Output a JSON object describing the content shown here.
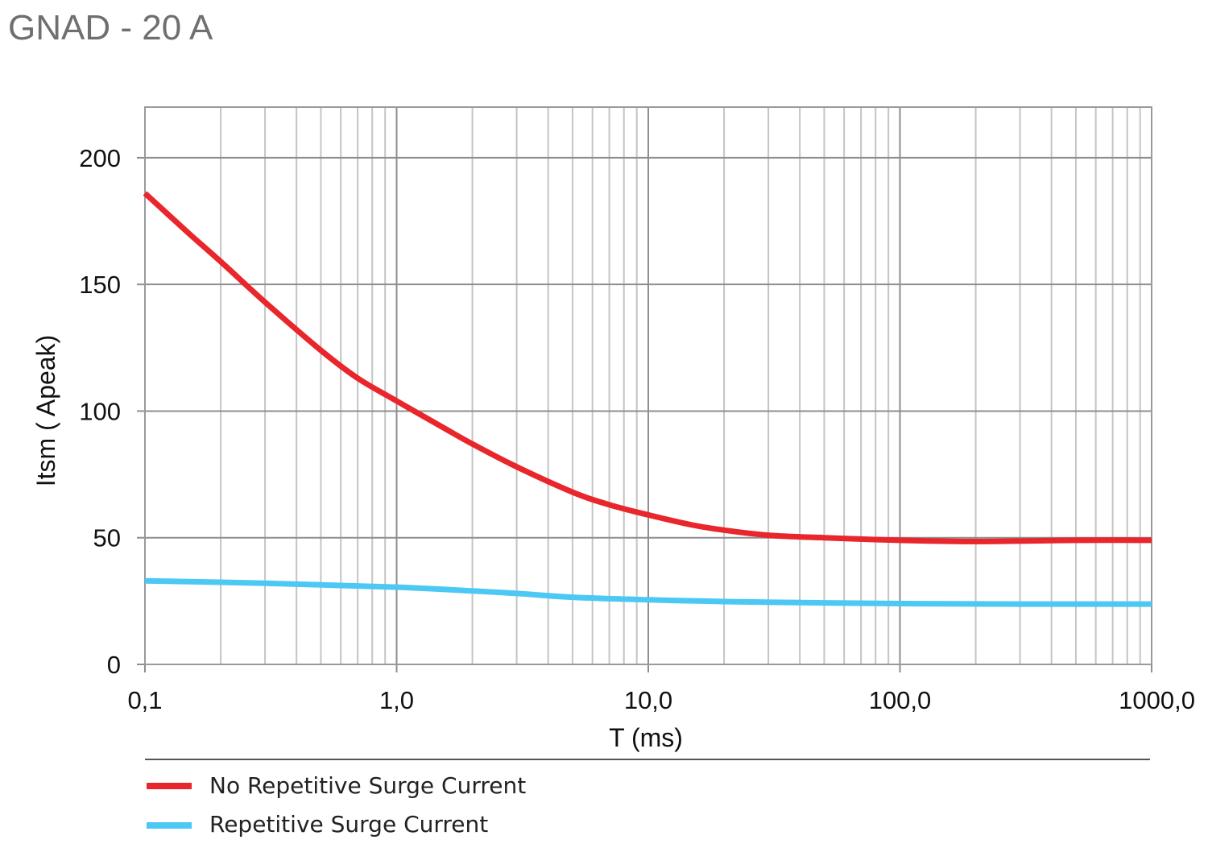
{
  "page_title": "GNAD - 20 A",
  "chart_data": {
    "type": "line",
    "title": "GNAD - 20 A",
    "xlabel": "T (ms)",
    "ylabel": "Itsm ( Apeak)",
    "x_scale": "log",
    "xlim": [
      0.1,
      1000
    ],
    "ylim": [
      0,
      220
    ],
    "x_ticks": [
      0.1,
      1,
      10,
      100,
      1000
    ],
    "x_tick_labels": [
      "0,1",
      "1,0",
      "10,0",
      "100,0",
      "1000,0"
    ],
    "y_ticks": [
      0,
      50,
      100,
      150,
      200
    ],
    "y_tick_labels": [
      "0",
      "50",
      "100",
      "150",
      "200"
    ],
    "grid": true,
    "legend_position": "bottom",
    "series": [
      {
        "name": "No Repetitive Surge Current",
        "color": "#e8262b",
        "x": [
          0.1,
          0.15,
          0.2,
          0.3,
          0.5,
          0.7,
          1,
          1.5,
          2,
          3,
          5,
          7,
          10,
          15,
          20,
          30,
          50,
          100,
          200,
          500,
          1000
        ],
        "y": [
          186,
          170,
          159,
          143,
          124,
          113,
          104,
          94,
          87,
          78,
          68,
          63,
          59,
          55,
          53,
          51,
          50,
          49,
          48.5,
          49,
          49
        ]
      },
      {
        "name": "Repetitive Surge Current",
        "color": "#4cc8f4",
        "x": [
          0.1,
          0.3,
          1,
          2,
          3,
          5,
          10,
          20,
          50,
          100,
          300,
          1000
        ],
        "y": [
          33,
          32,
          30.5,
          29,
          28,
          26.5,
          25.5,
          24.8,
          24.3,
          24,
          23.8,
          23.8
        ]
      }
    ]
  }
}
